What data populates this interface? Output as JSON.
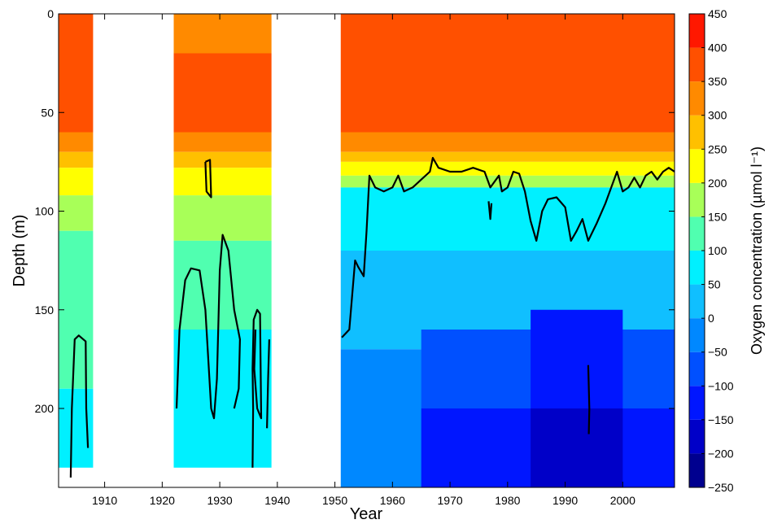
{
  "chart_data": {
    "type": "heatmap",
    "xlabel": "Year",
    "ylabel": "Depth (m)",
    "colorbar_label": "Oxygen concentration (µmol l⁻¹)",
    "x_range": [
      1902,
      2009
    ],
    "y_range": [
      0,
      240
    ],
    "y_reversed": true,
    "x_ticks": [
      1910,
      1920,
      1930,
      1940,
      1950,
      1960,
      1970,
      1980,
      1990,
      2000
    ],
    "y_ticks": [
      0,
      50,
      100,
      150,
      200
    ],
    "colorbar": {
      "range": [
        -250,
        450
      ],
      "ticks": [
        450,
        400,
        350,
        300,
        250,
        200,
        150,
        100,
        50,
        0,
        -50,
        -100,
        -150,
        -200,
        -250
      ],
      "levels": [
        {
          "from": -250,
          "to": -200,
          "color": "#00008f"
        },
        {
          "from": -200,
          "to": -150,
          "color": "#0000c8"
        },
        {
          "from": -150,
          "to": -100,
          "color": "#0016ff"
        },
        {
          "from": -100,
          "to": -50,
          "color": "#0050ff"
        },
        {
          "from": -50,
          "to": 0,
          "color": "#0088ff"
        },
        {
          "from": 0,
          "to": 50,
          "color": "#10bfff"
        },
        {
          "from": 50,
          "to": 100,
          "color": "#00f0ff"
        },
        {
          "from": 100,
          "to": 150,
          "color": "#50ffb0"
        },
        {
          "from": 150,
          "to": 200,
          "color": "#a8ff58"
        },
        {
          "from": 200,
          "to": 250,
          "color": "#ffff00"
        },
        {
          "from": 250,
          "to": 300,
          "color": "#ffc000"
        },
        {
          "from": 300,
          "to": 350,
          "color": "#ff8a00"
        },
        {
          "from": 350,
          "to": 400,
          "color": "#ff5000"
        },
        {
          "from": 400,
          "to": 450,
          "color": "#ff1800"
        }
      ]
    },
    "data_gaps_years": [
      [
        1908,
        1922
      ],
      [
        1939,
        1951
      ]
    ],
    "observation_periods": [
      {
        "years": [
          1902,
          1908
        ],
        "max_depth": 230,
        "bands": [
          {
            "depth_from": 0,
            "depth_to": 20,
            "value": 375
          },
          {
            "depth_from": 20,
            "depth_to": 60,
            "value": 375
          },
          {
            "depth_from": 60,
            "depth_to": 70,
            "value": 325
          },
          {
            "depth_from": 70,
            "depth_to": 78,
            "value": 275
          },
          {
            "depth_from": 78,
            "depth_to": 92,
            "value": 225
          },
          {
            "depth_from": 92,
            "depth_to": 110,
            "value": 175
          },
          {
            "depth_from": 110,
            "depth_to": 190,
            "value": 125
          },
          {
            "depth_from": 190,
            "depth_to": 230,
            "value": 75
          }
        ]
      },
      {
        "years": [
          1922,
          1939
        ],
        "max_depth": 230,
        "bands": [
          {
            "depth_from": 0,
            "depth_to": 20,
            "value": 325
          },
          {
            "depth_from": 20,
            "depth_to": 60,
            "value": 375
          },
          {
            "depth_from": 60,
            "depth_to": 70,
            "value": 325
          },
          {
            "depth_from": 70,
            "depth_to": 78,
            "value": 275
          },
          {
            "depth_from": 78,
            "depth_to": 92,
            "value": 225
          },
          {
            "depth_from": 92,
            "depth_to": 115,
            "value": 175
          },
          {
            "depth_from": 115,
            "depth_to": 160,
            "value": 125
          },
          {
            "depth_from": 160,
            "depth_to": 230,
            "value": 75
          }
        ]
      },
      {
        "years": [
          1951,
          2009
        ],
        "max_depth": 240,
        "bands": [
          {
            "depth_from": 0,
            "depth_to": 60,
            "value": 375
          },
          {
            "depth_from": 60,
            "depth_to": 70,
            "value": 325
          },
          {
            "depth_from": 70,
            "depth_to": 75,
            "value": 275
          },
          {
            "depth_from": 75,
            "depth_to": 82,
            "value": 225
          },
          {
            "depth_from": 82,
            "depth_to": 88,
            "value": 175
          },
          {
            "depth_from": 88,
            "depth_to": 120,
            "value": 75
          },
          {
            "depth_from": 120,
            "depth_to": 170,
            "value": 25
          },
          {
            "depth_from": 170,
            "depth_to": 240,
            "value": -25
          }
        ]
      },
      {
        "years": [
          1965,
          2009
        ],
        "max_depth": 240,
        "bands": [
          {
            "depth_from": 160,
            "depth_to": 200,
            "value": -75
          },
          {
            "depth_from": 200,
            "depth_to": 240,
            "value": -125
          }
        ]
      },
      {
        "years": [
          1984,
          2000
        ],
        "max_depth": 240,
        "bands": [
          {
            "depth_from": 150,
            "depth_to": 200,
            "value": -125
          },
          {
            "depth_from": 200,
            "depth_to": 240,
            "value": -175
          }
        ]
      }
    ],
    "zero_contour_segments": [
      [
        [
          1904.1,
          235
        ],
        [
          1904.3,
          200
        ],
        [
          1904.8,
          165
        ],
        [
          1905.5,
          163
        ],
        [
          1906.7,
          166
        ],
        [
          1906.8,
          200
        ],
        [
          1907.1,
          220
        ]
      ],
      [
        [
          1922.5,
          200
        ],
        [
          1923,
          160
        ],
        [
          1924,
          135
        ],
        [
          1925,
          129
        ],
        [
          1926.5,
          130
        ],
        [
          1927.5,
          150
        ],
        [
          1928.3,
          190
        ],
        [
          1928.5,
          200
        ],
        [
          1929,
          205
        ],
        [
          1929.5,
          185
        ],
        [
          1930,
          130
        ],
        [
          1930.5,
          112
        ],
        [
          1931.5,
          120
        ],
        [
          1932.5,
          150
        ],
        [
          1933.5,
          165
        ],
        [
          1933.3,
          190
        ],
        [
          1932.5,
          200
        ]
      ],
      [
        [
          1927.5,
          75
        ],
        [
          1928.3,
          74
        ],
        [
          1928.5,
          93
        ],
        [
          1927.7,
          90
        ],
        [
          1927.5,
          75
        ]
      ],
      [
        [
          1935.7,
          230
        ],
        [
          1935.8,
          200
        ],
        [
          1935.7,
          180
        ],
        [
          1935.9,
          155
        ],
        [
          1936.5,
          150
        ],
        [
          1937,
          152
        ],
        [
          1937.2,
          205
        ],
        [
          1936.5,
          200
        ],
        [
          1936,
          180
        ],
        [
          1936.2,
          160
        ]
      ],
      [
        [
          1938.2,
          210
        ],
        [
          1938.4,
          185
        ],
        [
          1938.6,
          165
        ]
      ],
      [
        [
          1951.2,
          164
        ],
        [
          1952.5,
          160
        ],
        [
          1953.5,
          125
        ],
        [
          1954,
          128
        ],
        [
          1955,
          133
        ],
        [
          1955.5,
          110
        ],
        [
          1956,
          82
        ],
        [
          1957,
          88
        ],
        [
          1958.5,
          90
        ],
        [
          1960,
          88
        ],
        [
          1961,
          82
        ],
        [
          1962,
          90
        ],
        [
          1963.5,
          88
        ],
        [
          1965,
          84
        ],
        [
          1966.5,
          80
        ],
        [
          1967,
          73
        ],
        [
          1968,
          78
        ],
        [
          1970,
          80
        ],
        [
          1972,
          80
        ],
        [
          1974,
          78
        ],
        [
          1976,
          80
        ],
        [
          1977,
          88
        ],
        [
          1978.5,
          82
        ],
        [
          1979,
          90
        ],
        [
          1980,
          88
        ],
        [
          1981,
          80
        ],
        [
          1982,
          81
        ],
        [
          1983,
          90
        ],
        [
          1984,
          105
        ],
        [
          1985,
          115
        ],
        [
          1986,
          100
        ],
        [
          1987,
          94
        ],
        [
          1988.5,
          93
        ],
        [
          1990,
          98
        ],
        [
          1991,
          115
        ],
        [
          1992,
          110
        ],
        [
          1993,
          104
        ],
        [
          1994,
          115
        ],
        [
          1995.5,
          106
        ],
        [
          1997,
          96
        ],
        [
          1998,
          88
        ],
        [
          1999,
          80
        ],
        [
          2000,
          90
        ],
        [
          2001,
          88
        ],
        [
          2002,
          83
        ],
        [
          2003,
          88
        ],
        [
          2004,
          82
        ],
        [
          2005,
          80
        ],
        [
          2006,
          84
        ],
        [
          2007,
          80
        ],
        [
          2008,
          78
        ],
        [
          2009,
          80
        ]
      ],
      [
        [
          1976.7,
          95
        ],
        [
          1977,
          104
        ],
        [
          1977.2,
          96
        ]
      ],
      [
        [
          1994,
          178
        ],
        [
          1994.2,
          200
        ],
        [
          1994.1,
          213
        ]
      ]
    ]
  }
}
